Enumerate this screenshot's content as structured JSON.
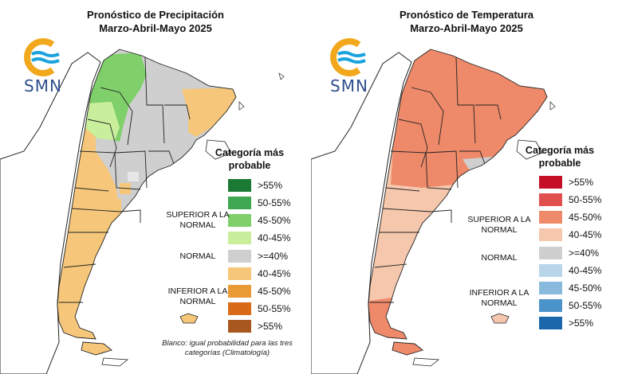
{
  "precip": {
    "title_line1": "Pronóstico de Precipitación",
    "title_line2": "Marzo-Abril-Mayo 2025",
    "legend_title": "Categoría más probable",
    "legend": [
      {
        "label": ">55%",
        "color": "#1a7a33"
      },
      {
        "label": "50-55%",
        "color": "#3fa652"
      },
      {
        "label": "45-50%",
        "color": "#7fd06a"
      },
      {
        "label": "40-45%",
        "color": "#c9ef9c"
      },
      {
        "label": ">=40%",
        "color": "#cfcfcf"
      },
      {
        "label": "40-45%",
        "color": "#f6c77a"
      },
      {
        "label": "45-50%",
        "color": "#e99a35"
      },
      {
        "label": "50-55%",
        "color": "#d86a18"
      },
      {
        "label": ">55%",
        "color": "#a8581e"
      }
    ],
    "groups": {
      "above": "SUPERIOR A LA NORMAL",
      "normal": "NORMAL",
      "below": "INFERIOR A LA NORMAL"
    },
    "footnote": "Blanco: igual probabilidad para las tres categorías (Climatología)"
  },
  "temp": {
    "title_line1": "Pronóstico de Temperatura",
    "title_line2": "Marzo-Abril-Mayo 2025",
    "legend_title": "Categoría más probable",
    "legend": [
      {
        "label": ">55%",
        "color": "#c40f26"
      },
      {
        "label": "50-55%",
        "color": "#e0504f"
      },
      {
        "label": "45-50%",
        "color": "#ee8a6a"
      },
      {
        "label": "40-45%",
        "color": "#f5c7ad"
      },
      {
        "label": ">=40%",
        "color": "#cfcfcf"
      },
      {
        "label": "40-45%",
        "color": "#b9d5ea"
      },
      {
        "label": "45-50%",
        "color": "#8ab9de"
      },
      {
        "label": "50-55%",
        "color": "#4b93cb"
      },
      {
        "label": ">55%",
        "color": "#1b67ac"
      }
    ],
    "groups": {
      "above": "SUPERIOR A LA NORMAL",
      "normal": "NORMAL",
      "below": "INFERIOR A LA NORMAL"
    }
  },
  "logo": {
    "word": "SMN",
    "sun_color": "#f2a81d",
    "wave_color": "#1aa3dc"
  }
}
